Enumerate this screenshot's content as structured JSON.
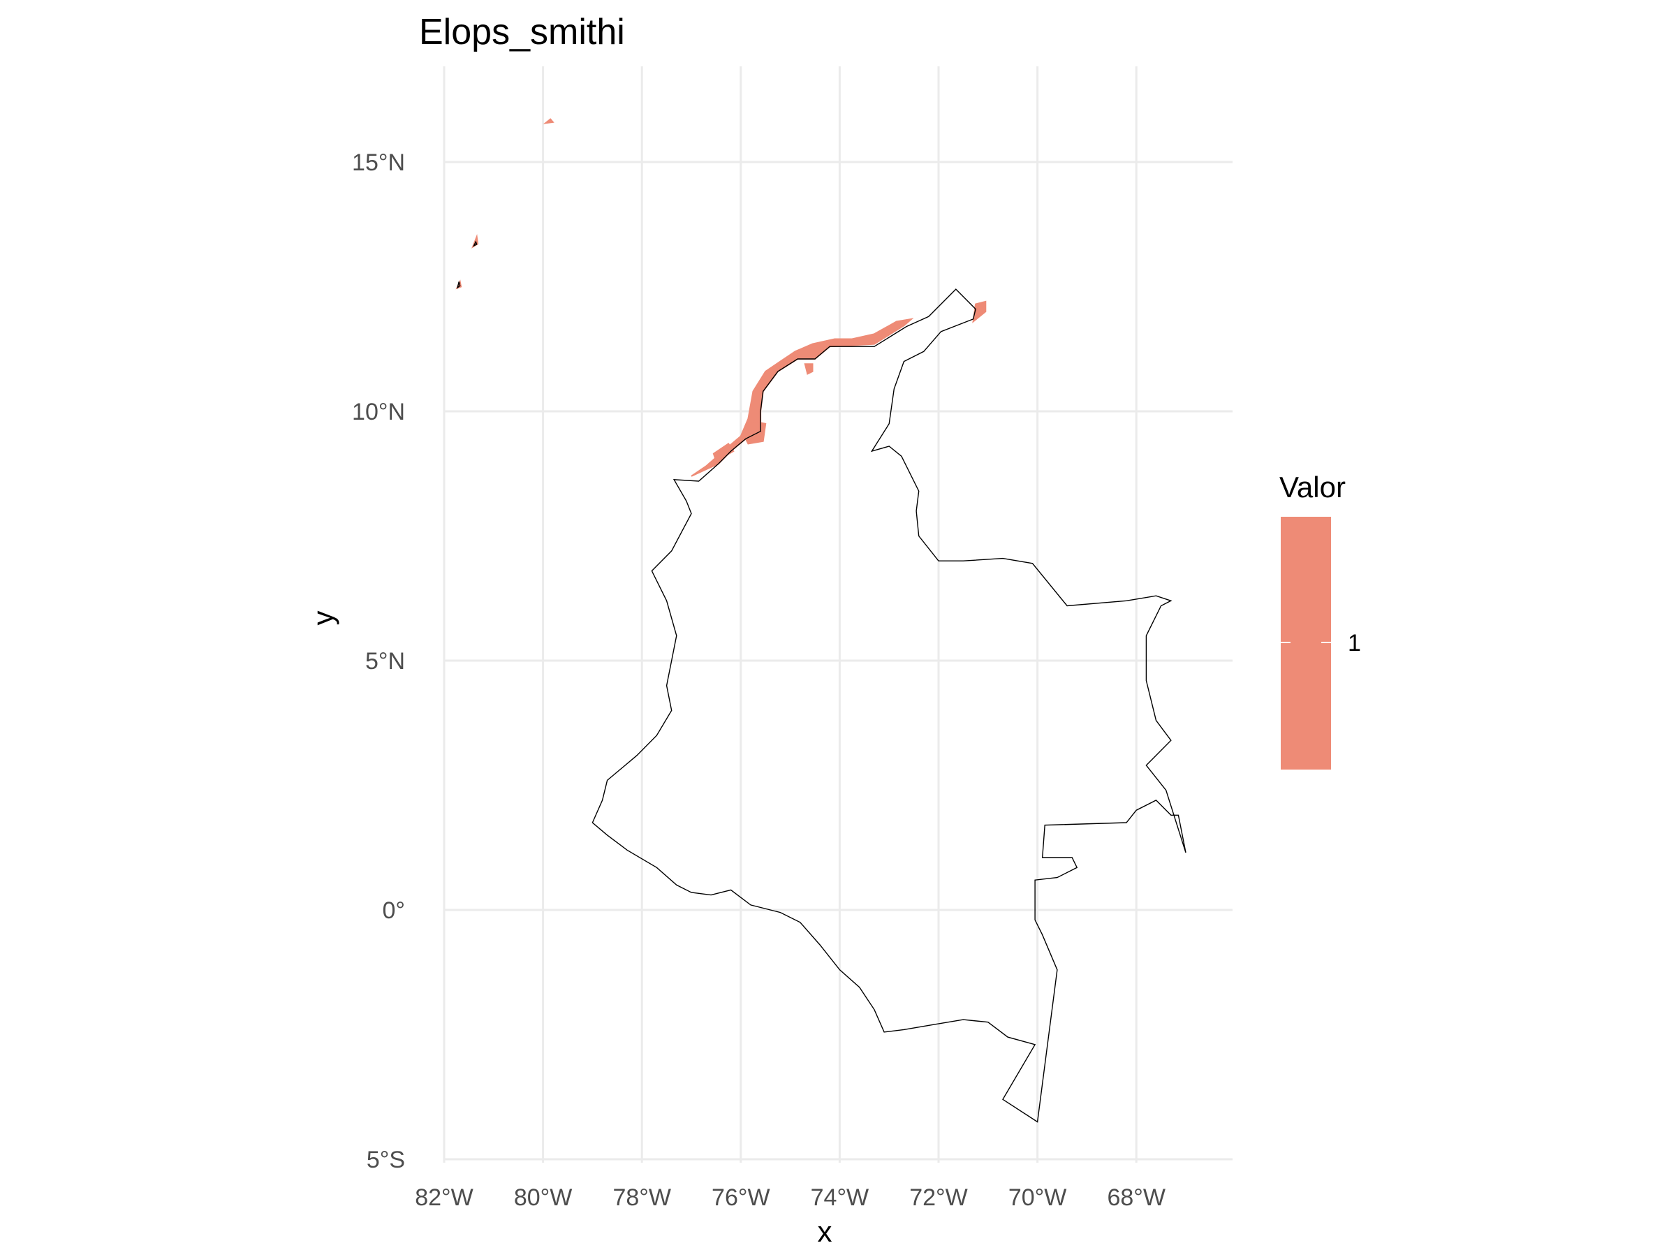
{
  "title": "Elops_smithi",
  "x_axis_title": "x",
  "y_axis_title": "y",
  "x_ticks": [
    {
      "lon": -82,
      "label": "82°W"
    },
    {
      "lon": -80,
      "label": "80°W"
    },
    {
      "lon": -78,
      "label": "78°W"
    },
    {
      "lon": -76,
      "label": "76°W"
    },
    {
      "lon": -74,
      "label": "74°W"
    },
    {
      "lon": -72,
      "label": "72°W"
    },
    {
      "lon": -70,
      "label": "70°W"
    },
    {
      "lon": -68,
      "label": "68°W"
    }
  ],
  "y_ticks": [
    {
      "lat": 15,
      "label": "15°N"
    },
    {
      "lat": 10,
      "label": "10°N"
    },
    {
      "lat": 5,
      "label": "5°N"
    },
    {
      "lat": 0,
      "label": "0°"
    },
    {
      "lat": -5,
      "label": "5°S"
    }
  ],
  "legend": {
    "title": "Valor",
    "items": [
      {
        "label": "1",
        "color": "#ee8b76"
      }
    ]
  },
  "colors": {
    "distribution": "#ee8b76",
    "border": "#000000",
    "grid": "#ebebeb",
    "tick_text": "#4d4d4d"
  },
  "map": {
    "lon_range": [
      -82.2,
      -66.6
    ],
    "lat_range": [
      -5.0,
      16.8
    ],
    "country_border": [
      [
        -77.35,
        8.63
      ],
      [
        -77.1,
        8.2
      ],
      [
        -77.0,
        7.95
      ],
      [
        -77.4,
        7.2
      ],
      [
        -77.8,
        6.8
      ],
      [
        -77.5,
        6.2
      ],
      [
        -77.3,
        5.5
      ],
      [
        -77.5,
        4.5
      ],
      [
        -77.4,
        4.0
      ],
      [
        -77.7,
        3.5
      ],
      [
        -78.1,
        3.1
      ],
      [
        -78.7,
        2.6
      ],
      [
        -78.8,
        2.2
      ],
      [
        -79.0,
        1.75
      ],
      [
        -78.7,
        1.5
      ],
      [
        -78.3,
        1.2
      ],
      [
        -77.7,
        0.85
      ],
      [
        -77.3,
        0.5
      ],
      [
        -77.0,
        0.35
      ],
      [
        -76.6,
        0.3
      ],
      [
        -76.2,
        0.4
      ],
      [
        -75.8,
        0.1
      ],
      [
        -75.2,
        -0.05
      ],
      [
        -74.8,
        -0.25
      ],
      [
        -74.4,
        -0.7
      ],
      [
        -74.0,
        -1.2
      ],
      [
        -73.6,
        -1.55
      ],
      [
        -73.3,
        -2.0
      ],
      [
        -73.1,
        -2.45
      ],
      [
        -72.7,
        -2.4
      ],
      [
        -72.1,
        -2.3
      ],
      [
        -71.5,
        -2.2
      ],
      [
        -71.0,
        -2.25
      ],
      [
        -70.6,
        -2.55
      ],
      [
        -70.05,
        -2.7
      ],
      [
        -70.7,
        -3.8
      ],
      [
        -70.0,
        -4.25
      ],
      [
        -69.6,
        -1.2
      ],
      [
        -69.9,
        -0.5
      ],
      [
        -70.05,
        -0.2
      ],
      [
        -70.05,
        0.6
      ],
      [
        -69.6,
        0.65
      ],
      [
        -69.2,
        0.85
      ],
      [
        -69.3,
        1.05
      ],
      [
        -69.9,
        1.05
      ],
      [
        -69.85,
        1.7
      ],
      [
        -68.2,
        1.75
      ],
      [
        -68.0,
        2.0
      ],
      [
        -67.6,
        2.2
      ],
      [
        -67.3,
        1.9
      ],
      [
        -67.15,
        1.9
      ],
      [
        -67.0,
        1.15
      ],
      [
        -67.4,
        2.4
      ],
      [
        -67.8,
        2.9
      ],
      [
        -67.3,
        3.4
      ],
      [
        -67.6,
        3.8
      ],
      [
        -67.8,
        4.6
      ],
      [
        -67.8,
        5.5
      ],
      [
        -67.5,
        6.1
      ],
      [
        -67.3,
        6.2
      ],
      [
        -67.6,
        6.3
      ],
      [
        -68.2,
        6.2
      ],
      [
        -69.4,
        6.1
      ],
      [
        -70.1,
        6.95
      ],
      [
        -70.7,
        7.05
      ],
      [
        -71.5,
        7.0
      ],
      [
        -72.0,
        7.0
      ],
      [
        -72.4,
        7.5
      ],
      [
        -72.45,
        8.0
      ],
      [
        -72.4,
        8.4
      ],
      [
        -72.75,
        9.1
      ],
      [
        -73.0,
        9.3
      ],
      [
        -73.35,
        9.2
      ],
      [
        -73.0,
        9.75
      ],
      [
        -72.9,
        10.45
      ],
      [
        -72.7,
        11.0
      ],
      [
        -72.3,
        11.2
      ],
      [
        -71.95,
        11.6
      ],
      [
        -71.3,
        11.85
      ],
      [
        -71.25,
        12.05
      ],
      [
        -71.65,
        12.45
      ],
      [
        -72.2,
        11.9
      ],
      [
        -72.65,
        11.7
      ],
      [
        -73.3,
        11.3
      ],
      [
        -74.2,
        11.3
      ],
      [
        -74.5,
        11.05
      ],
      [
        -74.85,
        11.05
      ],
      [
        -75.25,
        10.8
      ],
      [
        -75.55,
        10.4
      ],
      [
        -75.6,
        10.0
      ],
      [
        -75.6,
        9.6
      ],
      [
        -75.9,
        9.45
      ],
      [
        -76.2,
        9.2
      ],
      [
        -76.45,
        8.95
      ],
      [
        -76.85,
        8.6
      ],
      [
        -77.35,
        8.63
      ]
    ],
    "island_borders": [
      [
        [
          -81.73,
          12.48
        ],
        [
          -81.7,
          12.6
        ],
        [
          -81.68,
          12.52
        ],
        [
          -81.73,
          12.48
        ]
      ],
      [
        [
          -81.4,
          13.32
        ],
        [
          -81.36,
          13.4
        ],
        [
          -81.34,
          13.35
        ],
        [
          -81.4,
          13.32
        ]
      ]
    ],
    "distribution_areas": [
      [
        [
          -77.0,
          8.7
        ],
        [
          -76.7,
          8.9
        ],
        [
          -76.3,
          9.25
        ],
        [
          -76.0,
          9.5
        ],
        [
          -75.85,
          9.85
        ],
        [
          -75.75,
          10.4
        ],
        [
          -75.5,
          10.8
        ],
        [
          -75.2,
          11.0
        ],
        [
          -74.9,
          11.2
        ],
        [
          -74.55,
          11.35
        ],
        [
          -74.1,
          11.45
        ],
        [
          -73.75,
          11.45
        ],
        [
          -73.3,
          11.55
        ],
        [
          -72.85,
          11.8
        ],
        [
          -72.55,
          11.85
        ],
        [
          -72.7,
          11.72
        ],
        [
          -73.3,
          11.35
        ],
        [
          -74.2,
          11.3
        ],
        [
          -74.5,
          11.05
        ],
        [
          -74.85,
          11.05
        ],
        [
          -75.25,
          10.8
        ],
        [
          -75.55,
          10.4
        ],
        [
          -75.6,
          10.0
        ],
        [
          -75.6,
          9.6
        ],
        [
          -75.9,
          9.45
        ],
        [
          -76.2,
          9.2
        ],
        [
          -76.45,
          8.95
        ],
        [
          -77.0,
          8.7
        ]
      ],
      [
        [
          -75.85,
          9.35
        ],
        [
          -75.55,
          9.4
        ],
        [
          -75.5,
          9.75
        ],
        [
          -75.75,
          9.8
        ],
        [
          -75.95,
          9.55
        ],
        [
          -75.85,
          9.35
        ]
      ],
      [
        [
          -76.5,
          9.0
        ],
        [
          -76.15,
          9.2
        ],
        [
          -76.25,
          9.35
        ],
        [
          -76.55,
          9.15
        ],
        [
          -76.5,
          9.0
        ]
      ],
      [
        [
          -74.65,
          10.75
        ],
        [
          -74.55,
          10.8
        ],
        [
          -74.55,
          10.95
        ],
        [
          -74.7,
          10.95
        ],
        [
          -74.65,
          10.75
        ]
      ],
      [
        [
          -71.3,
          11.8
        ],
        [
          -71.05,
          12.0
        ],
        [
          -71.05,
          12.2
        ],
        [
          -71.25,
          12.15
        ],
        [
          -71.3,
          11.8
        ]
      ],
      [
        [
          -81.74,
          12.47
        ],
        [
          -81.68,
          12.6
        ],
        [
          -81.66,
          12.5
        ],
        [
          -81.74,
          12.47
        ]
      ],
      [
        [
          -81.42,
          13.3
        ],
        [
          -81.34,
          13.5
        ],
        [
          -81.32,
          13.36
        ],
        [
          -81.42,
          13.3
        ]
      ],
      [
        [
          -79.95,
          15.78
        ],
        [
          -79.85,
          15.86
        ],
        [
          -79.8,
          15.8
        ],
        [
          -79.95,
          15.78
        ]
      ]
    ]
  }
}
